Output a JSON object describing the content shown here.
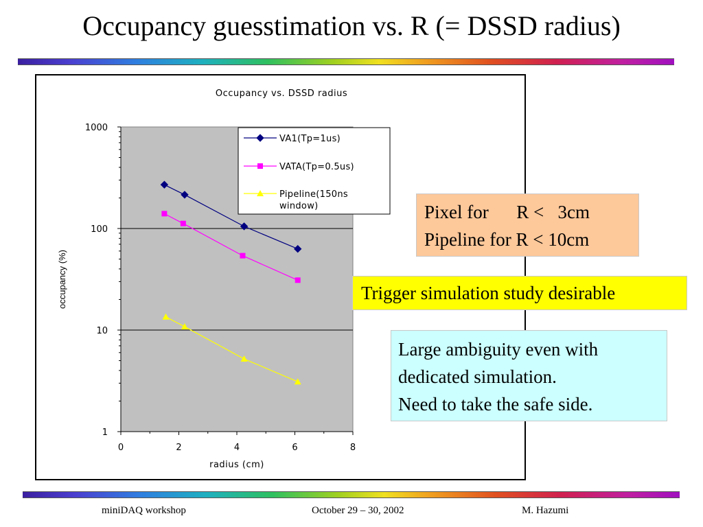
{
  "slide": {
    "title": "Occupancy guesstimation vs. R (= DSSD radius)"
  },
  "callouts": {
    "pixel_line1": "Pixel for      R <   3cm",
    "pixel_line2": "Pipeline for R < 10cm",
    "trigger": "Trigger simulation study desirable",
    "ambiguity_line1": "Large ambiguity even with",
    "ambiguity_line2": "dedicated simulation.",
    "ambiguity_line3": "Need to take the safe side."
  },
  "footer": {
    "left": "miniDAQ workshop",
    "center": "October 29 – 30, 2002",
    "right": "M. Hazumi"
  },
  "chart_data": {
    "type": "line",
    "title": "Occupancy vs. DSSD radius",
    "xlabel": "radius (cm)",
    "ylabel": "occupancy (%)",
    "xlim": [
      0,
      8
    ],
    "ylim": [
      1,
      1000
    ],
    "yscale": "log",
    "xticks": [
      "0",
      "2",
      "4",
      "6",
      "8"
    ],
    "yticks": [
      "1",
      "10",
      "100",
      "1000"
    ],
    "grid": "horizontal major gridlines at decades",
    "plot_background": "#c0c0c0",
    "legend_position": "top-center inside plot area",
    "series": [
      {
        "name": "VA1(Tp=1us)",
        "color": "#000080",
        "marker": "diamond",
        "x": [
          1.5,
          2.2,
          4.25,
          6.1
        ],
        "y": [
          270,
          215,
          105,
          63
        ]
      },
      {
        "name": "VATA(Tp=0.5us)",
        "color": "#ff00ff",
        "marker": "square",
        "x": [
          1.5,
          2.15,
          4.2,
          6.1
        ],
        "y": [
          140,
          112,
          54,
          31
        ]
      },
      {
        "name": "Pipeline(150ns window)",
        "color": "#ffff00",
        "marker": "triangle",
        "legend_lines": [
          "Pipeline(150ns",
          "window)"
        ],
        "x": [
          1.55,
          2.2,
          4.25,
          6.1
        ],
        "y": [
          13.5,
          10.8,
          5.2,
          3.1
        ]
      }
    ]
  }
}
